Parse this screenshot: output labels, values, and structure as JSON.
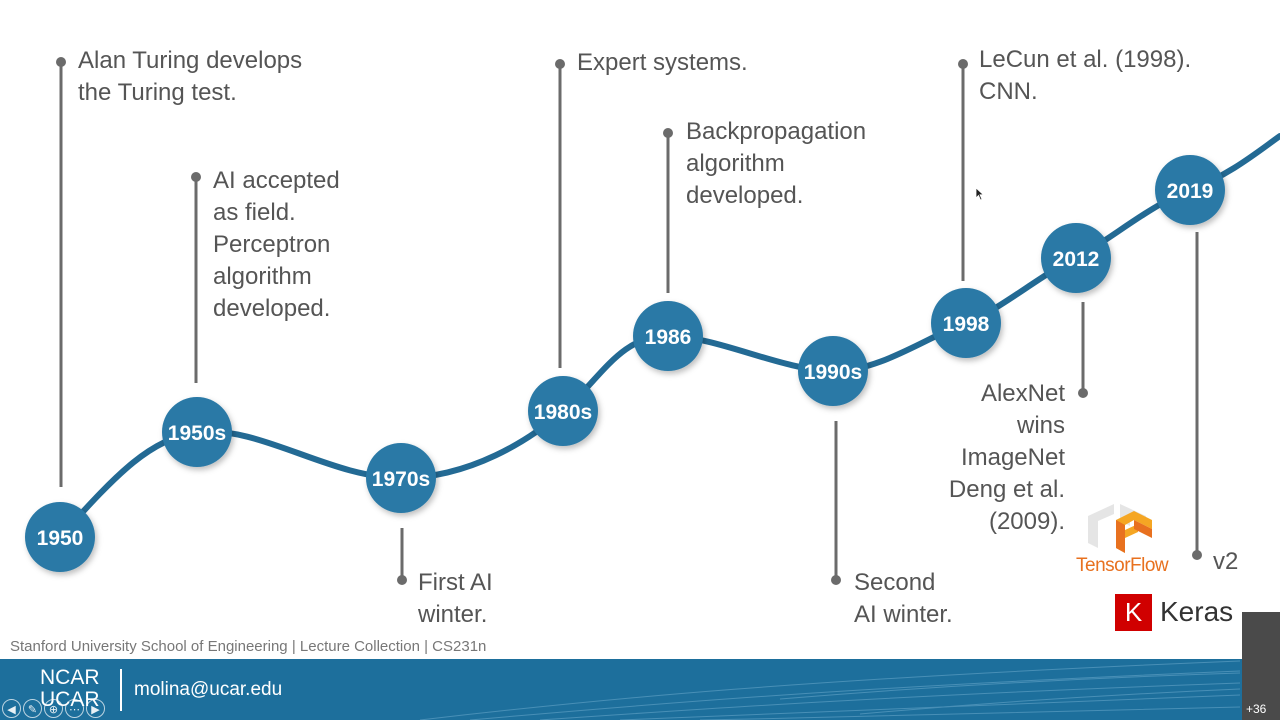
{
  "nodes": [
    {
      "id": "1950",
      "label": "1950"
    },
    {
      "id": "1950s",
      "label": "1950s"
    },
    {
      "id": "1970s",
      "label": "1970s"
    },
    {
      "id": "1980s",
      "label": "1980s"
    },
    {
      "id": "1986",
      "label": "1986"
    },
    {
      "id": "1990s",
      "label": "1990s"
    },
    {
      "id": "1998",
      "label": "1998"
    },
    {
      "id": "2012",
      "label": "2012"
    },
    {
      "id": "2019",
      "label": "2019"
    }
  ],
  "annotations": {
    "turing": "Alan Turing develops\nthe Turing test.",
    "ai_field": "AI accepted\nas field.\nPerceptron\nalgorithm\ndeveloped.",
    "first_winter": "First AI\nwinter.",
    "expert": "Expert systems.",
    "backprop": "Backpropagation\nalgorithm\ndeveloped.",
    "second_winter": "Second\nAI winter.",
    "lecun": "LeCun et al. (1998).\nCNN.",
    "alexnet": "AlexNet\nwins\nImageNet\nDeng et al.\n(2009).",
    "v2": "v2"
  },
  "logos": {
    "tensorflow": "TensorFlow",
    "keras_letter": "K",
    "keras": "Keras"
  },
  "footer": {
    "credit": "Stanford University School of Engineering | Lecture Collection | CS231n",
    "org_line1": "NCAR",
    "org_line2": "UCAR",
    "email": "molina@ucar.edu",
    "more_count": "+36"
  },
  "colors": {
    "node": "#2a79a6",
    "curve": "#236a94",
    "connector": "#6b6b6b",
    "bar": "#1d6f9c",
    "tensorflow": "#e8711f",
    "keras": "#d00000"
  }
}
